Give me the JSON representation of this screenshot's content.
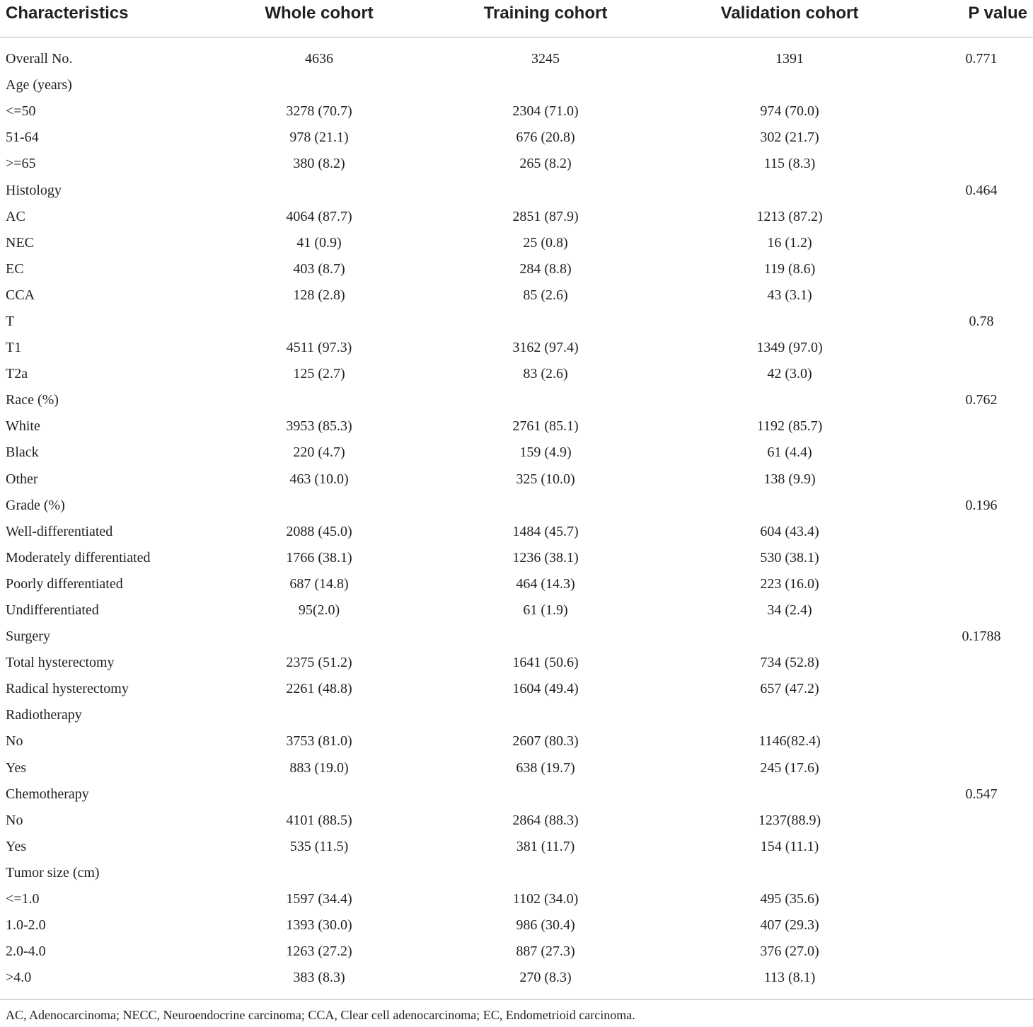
{
  "table": {
    "headers": [
      "Characteristics",
      "Whole cohort",
      "Training cohort",
      "Validation cohort",
      "P value"
    ],
    "rows": [
      [
        "Overall No.",
        "4636",
        "3245",
        "1391",
        "0.771"
      ],
      [
        "Age (years)",
        "",
        "",
        "",
        ""
      ],
      [
        "<=50",
        "3278 (70.7)",
        "2304 (71.0)",
        "974 (70.0)",
        ""
      ],
      [
        "51-64",
        "978 (21.1)",
        "676 (20.8)",
        "302 (21.7)",
        ""
      ],
      [
        ">=65",
        "380 (8.2)",
        "265 (8.2)",
        "115 (8.3)",
        ""
      ],
      [
        "Histology",
        "",
        "",
        "",
        "0.464"
      ],
      [
        "AC",
        "4064 (87.7)",
        "2851 (87.9)",
        "1213 (87.2)",
        ""
      ],
      [
        "NEC",
        "41 (0.9)",
        "25 (0.8)",
        "16 (1.2)",
        ""
      ],
      [
        "EC",
        "403 (8.7)",
        "284 (8.8)",
        "119 (8.6)",
        ""
      ],
      [
        "CCA",
        "128 (2.8)",
        "85 (2.6)",
        "43 (3.1)",
        ""
      ],
      [
        "T",
        "",
        "",
        "",
        "0.78"
      ],
      [
        "T1",
        "4511 (97.3)",
        "3162 (97.4)",
        "1349 (97.0)",
        ""
      ],
      [
        "T2a",
        "125 (2.7)",
        "83 (2.6)",
        "42 (3.0)",
        ""
      ],
      [
        "Race (%)",
        "",
        "",
        "",
        "0.762"
      ],
      [
        "White",
        "3953 (85.3)",
        "2761 (85.1)",
        "1192 (85.7)",
        ""
      ],
      [
        "Black",
        "220 (4.7)",
        "159 (4.9)",
        "61 (4.4)",
        ""
      ],
      [
        "Other",
        "463 (10.0)",
        "325 (10.0)",
        "138 (9.9)",
        ""
      ],
      [
        "Grade (%)",
        "",
        "",
        "",
        "0.196"
      ],
      [
        "Well-differentiated",
        "2088 (45.0)",
        "1484 (45.7)",
        "604 (43.4)",
        ""
      ],
      [
        "Moderately differentiated",
        "1766 (38.1)",
        "1236 (38.1)",
        "530 (38.1)",
        ""
      ],
      [
        "Poorly differentiated",
        "687 (14.8)",
        "464 (14.3)",
        "223 (16.0)",
        ""
      ],
      [
        "Undifferentiated",
        "95(2.0)",
        "61 (1.9)",
        "34 (2.4)",
        ""
      ],
      [
        "Surgery",
        "",
        "",
        "",
        "0.1788"
      ],
      [
        "Total hysterectomy",
        "2375 (51.2)",
        "1641 (50.6)",
        "734 (52.8)",
        ""
      ],
      [
        "Radical hysterectomy",
        "2261 (48.8)",
        "1604 (49.4)",
        "657 (47.2)",
        ""
      ],
      [
        "Radiotherapy",
        "",
        "",
        "",
        ""
      ],
      [
        "No",
        "3753 (81.0)",
        "2607 (80.3)",
        "1146(82.4)",
        ""
      ],
      [
        "Yes",
        "883 (19.0)",
        "638 (19.7)",
        "245 (17.6)",
        ""
      ],
      [
        "Chemotherapy",
        "",
        "",
        "",
        "0.547"
      ],
      [
        "No",
        "4101 (88.5)",
        "2864 (88.3)",
        "1237(88.9)",
        ""
      ],
      [
        "Yes",
        "535 (11.5)",
        "381 (11.7)",
        "154 (11.1)",
        ""
      ],
      [
        "Tumor size (cm)",
        "",
        "",
        "",
        ""
      ],
      [
        "<=1.0",
        "1597 (34.4)",
        "1102 (34.0)",
        "495 (35.6)",
        ""
      ],
      [
        "1.0-2.0",
        "1393 (30.0)",
        "986 (30.4)",
        "407 (29.3)",
        ""
      ],
      [
        "2.0-4.0",
        "1263 (27.2)",
        "887 (27.3)",
        "376 (27.0)",
        ""
      ],
      [
        ">4.0",
        "383 (8.3)",
        "270 (8.3)",
        "113 (8.1)",
        ""
      ]
    ]
  },
  "footnote": "AC, Adenocarcinoma; NECC, Neuroendocrine carcinoma; CCA, Clear cell adenocarcinoma; EC, Endometrioid carcinoma."
}
